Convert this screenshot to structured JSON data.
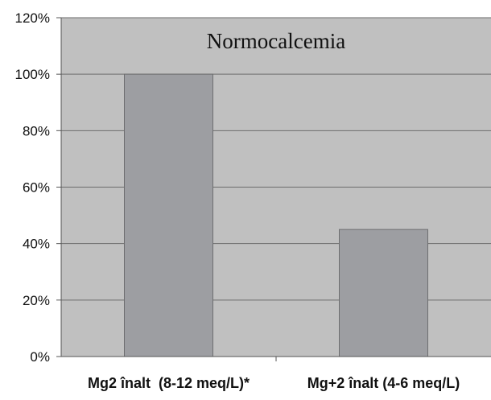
{
  "chart_data": {
    "type": "bar",
    "title": "Normocalcemia",
    "categories": [
      "Mg2 înalt  (8-12 meq/L)*",
      "Mg+2 înalt (4-6 meq/L)"
    ],
    "values": [
      100,
      45
    ],
    "ylim": [
      0,
      120
    ],
    "yticks": [
      "0%",
      "20%",
      "40%",
      "60%",
      "80%",
      "100%",
      "120%"
    ],
    "grid": true,
    "legend": "none",
    "colors": {
      "plot_background": "#c0c0c0",
      "bar_fill": "#9d9ea2",
      "bar_stroke": "#6e6e70",
      "gridline": "#6b6b6b"
    }
  }
}
